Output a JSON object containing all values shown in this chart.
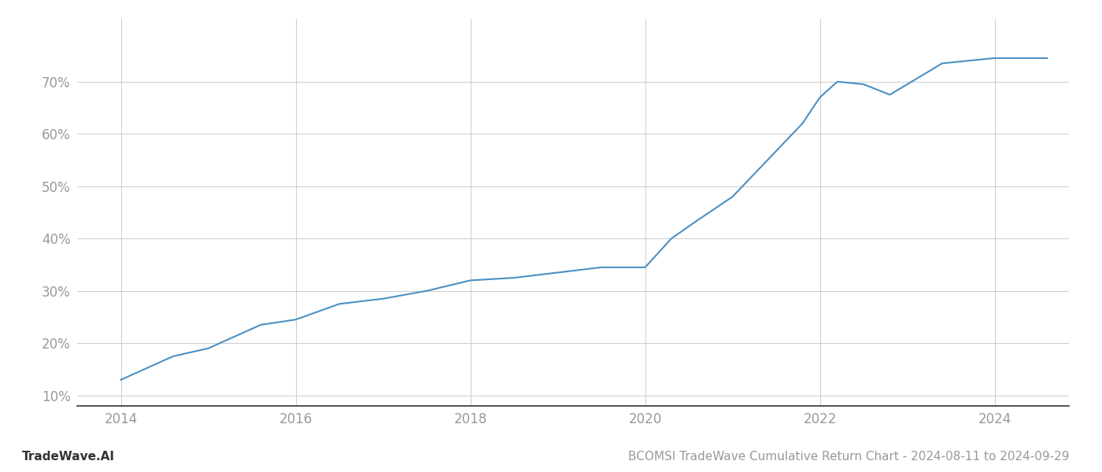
{
  "title": "BCOMSI TradeWave Cumulative Return Chart - 2024-08-11 to 2024-09-29",
  "watermark": "TradeWave.AI",
  "line_color": "#4a90c4",
  "background_color": "#ffffff",
  "grid_color": "#cccccc",
  "x_values": [
    2014.0,
    2014.6,
    2015.0,
    2015.6,
    2016.0,
    2016.5,
    2017.0,
    2017.5,
    2018.0,
    2018.5,
    2019.0,
    2019.5,
    2019.8,
    2020.0,
    2020.3,
    2020.6,
    2021.0,
    2021.4,
    2021.8,
    2022.0,
    2022.2,
    2022.5,
    2022.8,
    2023.0,
    2023.4,
    2023.7,
    2024.0,
    2024.6
  ],
  "y_values": [
    13.0,
    17.5,
    19.0,
    23.5,
    24.5,
    27.5,
    28.5,
    30.0,
    32.0,
    32.5,
    33.5,
    34.5,
    34.5,
    34.5,
    40.0,
    43.5,
    48.0,
    55.0,
    62.0,
    67.0,
    70.0,
    69.5,
    67.5,
    69.5,
    73.5,
    74.0,
    74.5,
    74.5
  ],
  "xlim": [
    2013.5,
    2024.85
  ],
  "ylim": [
    8,
    82
  ],
  "yticks": [
    10,
    20,
    30,
    40,
    50,
    60,
    70
  ],
  "xticks": [
    2014,
    2016,
    2018,
    2020,
    2022,
    2024
  ],
  "tick_label_color": "#999999",
  "tick_label_fontsize": 12,
  "title_fontsize": 11,
  "watermark_fontsize": 11,
  "line_width": 1.5,
  "bottom_spine_color": "#333333"
}
